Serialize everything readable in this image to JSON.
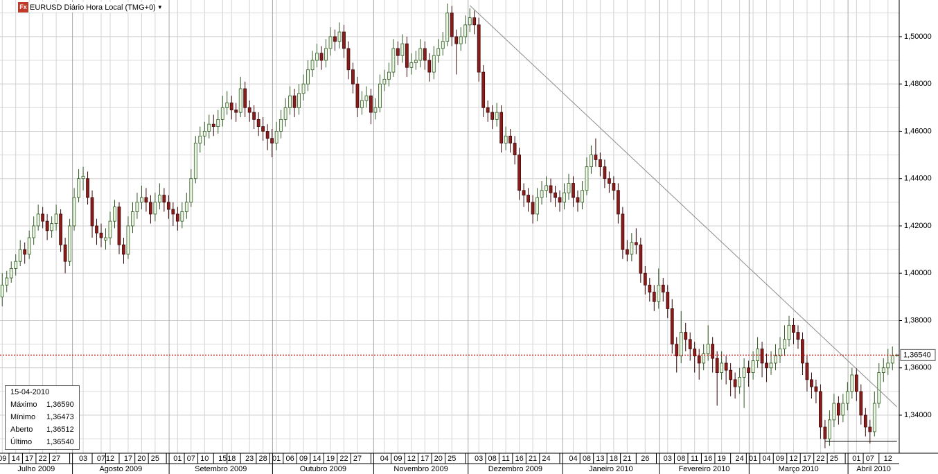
{
  "chart_data": {
    "type": "candlestick",
    "title": "EURUSD Diário Hora Local (TMG+0)",
    "ylim": [
      1.3239,
      1.5155
    ],
    "yticks": [
      {
        "value": 1.34,
        "label": "1,34000"
      },
      {
        "value": 1.36,
        "label": "1,36000"
      },
      {
        "value": 1.38,
        "label": "1,38000"
      },
      {
        "value": 1.4,
        "label": "1,40000"
      },
      {
        "value": 1.42,
        "label": "1,42000"
      },
      {
        "value": 1.44,
        "label": "1,44000"
      },
      {
        "value": 1.46,
        "label": "1,46000"
      },
      {
        "value": 1.48,
        "label": "1,48000"
      },
      {
        "value": 1.5,
        "label": "1,50000"
      }
    ],
    "minor_yticks": [
      1.33,
      1.35,
      1.37,
      1.39,
      1.41,
      1.43,
      1.45,
      1.47,
      1.49,
      1.51
    ],
    "grid": true,
    "up_color": "#eaf5e2",
    "up_stroke": "#2f5a22",
    "down_color": "#8b1c1c",
    "down_stroke": "#3d0a0a",
    "categories": [
      "09",
      null,
      null,
      "14",
      null,
      null,
      "17",
      null,
      null,
      "22",
      null,
      null,
      "27",
      null,
      null,
      null,
      null,
      null,
      "03",
      null,
      null,
      null,
      "07",
      null,
      "12",
      null,
      null,
      null,
      "17",
      null,
      null,
      "20",
      null,
      null,
      "25",
      null,
      null,
      null,
      null,
      "01",
      null,
      null,
      "07",
      null,
      null,
      "10",
      null,
      null,
      null,
      "15",
      null,
      "18",
      null,
      null,
      null,
      "23",
      null,
      null,
      "28",
      null,
      null,
      "01",
      null,
      null,
      "06",
      null,
      null,
      "09",
      null,
      null,
      "14",
      null,
      null,
      "19",
      null,
      null,
      "22",
      null,
      null,
      "27",
      null,
      null,
      null,
      null,
      null,
      "04",
      null,
      null,
      "09",
      null,
      null,
      "12",
      null,
      null,
      "17",
      null,
      null,
      "20",
      null,
      null,
      "25",
      null,
      null,
      null,
      null,
      null,
      "03",
      null,
      null,
      "08",
      null,
      null,
      "11",
      null,
      null,
      "16",
      null,
      null,
      "21",
      null,
      null,
      "24",
      null,
      null,
      null,
      null,
      null,
      "04",
      null,
      null,
      "08",
      null,
      null,
      "13",
      null,
      null,
      "18",
      null,
      null,
      "21",
      null,
      null,
      null,
      "26",
      null,
      null,
      null,
      null,
      "03",
      null,
      null,
      "08",
      null,
      null,
      "11",
      null,
      null,
      "16",
      null,
      null,
      "19",
      null,
      null,
      null,
      "24",
      null,
      null,
      "01",
      null,
      null,
      "04",
      null,
      null,
      "09",
      null,
      null,
      "12",
      null,
      null,
      "17",
      null,
      null,
      "22",
      null,
      null,
      "25",
      null,
      null,
      null,
      null,
      "01",
      null,
      null,
      "07",
      null,
      null,
      null,
      "12",
      null,
      null
    ],
    "months": [
      "Julho 2009",
      "Agosto 2009",
      "Setembro 2009",
      "Outubro 2009",
      "Novembro 2009",
      "Dezembro 2009",
      "Janeiro 2010",
      "Fevereiro 2010",
      "Março 2010",
      "Abril 2010"
    ],
    "ohlc": [
      [
        1.39,
        1.4,
        1.386,
        1.395
      ],
      [
        1.395,
        1.401,
        1.392,
        1.398
      ],
      [
        1.398,
        1.405,
        1.396,
        1.402
      ],
      [
        1.402,
        1.408,
        1.399,
        1.405
      ],
      [
        1.405,
        1.414,
        1.403,
        1.41
      ],
      [
        1.41,
        1.413,
        1.404,
        1.408
      ],
      [
        1.408,
        1.418,
        1.406,
        1.415
      ],
      [
        1.415,
        1.424,
        1.412,
        1.42
      ],
      [
        1.42,
        1.429,
        1.418,
        1.425
      ],
      [
        1.425,
        1.428,
        1.419,
        1.422
      ],
      [
        1.422,
        1.425,
        1.414,
        1.418
      ],
      [
        1.418,
        1.424,
        1.415,
        1.421
      ],
      [
        1.421,
        1.429,
        1.418,
        1.425
      ],
      [
        1.425,
        1.427,
        1.409,
        1.412
      ],
      [
        1.412,
        1.415,
        1.4,
        1.405
      ],
      [
        1.405,
        1.423,
        1.403,
        1.42
      ],
      [
        1.42,
        1.436,
        1.418,
        1.432
      ],
      [
        1.432,
        1.444,
        1.43,
        1.44
      ],
      [
        1.44,
        1.445,
        1.435,
        1.441
      ],
      [
        1.44,
        1.443,
        1.429,
        1.432
      ],
      [
        1.432,
        1.435,
        1.415,
        1.42
      ],
      [
        1.42,
        1.423,
        1.412,
        1.417
      ],
      [
        1.417,
        1.421,
        1.411,
        1.415
      ],
      [
        1.414,
        1.419,
        1.41,
        1.415
      ],
      [
        1.415,
        1.426,
        1.412,
        1.422
      ],
      [
        1.422,
        1.431,
        1.419,
        1.428
      ],
      [
        1.428,
        1.43,
        1.408,
        1.412
      ],
      [
        1.412,
        1.415,
        1.404,
        1.408
      ],
      [
        1.408,
        1.424,
        1.406,
        1.42
      ],
      [
        1.42,
        1.43,
        1.417,
        1.426
      ],
      [
        1.426,
        1.434,
        1.423,
        1.43
      ],
      [
        1.43,
        1.437,
        1.427,
        1.432
      ],
      [
        1.432,
        1.436,
        1.426,
        1.43
      ],
      [
        1.43,
        1.433,
        1.421,
        1.425
      ],
      [
        1.425,
        1.434,
        1.422,
        1.43
      ],
      [
        1.43,
        1.438,
        1.427,
        1.433
      ],
      [
        1.433,
        1.436,
        1.426,
        1.43
      ],
      [
        1.43,
        1.433,
        1.423,
        1.427
      ],
      [
        1.427,
        1.43,
        1.42,
        1.425
      ],
      [
        1.425,
        1.428,
        1.418,
        1.422
      ],
      [
        1.422,
        1.43,
        1.419,
        1.426
      ],
      [
        1.426,
        1.434,
        1.423,
        1.43
      ],
      [
        1.43,
        1.444,
        1.428,
        1.44
      ],
      [
        1.44,
        1.458,
        1.438,
        1.455
      ],
      [
        1.455,
        1.462,
        1.451,
        1.458
      ],
      [
        1.458,
        1.464,
        1.454,
        1.46
      ],
      [
        1.46,
        1.467,
        1.457,
        1.463
      ],
      [
        1.463,
        1.467,
        1.458,
        1.462
      ],
      [
        1.462,
        1.469,
        1.459,
        1.465
      ],
      [
        1.465,
        1.475,
        1.462,
        1.47
      ],
      [
        1.47,
        1.477,
        1.467,
        1.472
      ],
      [
        1.472,
        1.475,
        1.465,
        1.469
      ],
      [
        1.469,
        1.472,
        1.464,
        1.468
      ],
      [
        1.468,
        1.483,
        1.466,
        1.478
      ],
      [
        1.478,
        1.481,
        1.466,
        1.47
      ],
      [
        1.47,
        1.473,
        1.464,
        1.468
      ],
      [
        1.468,
        1.471,
        1.461,
        1.465
      ],
      [
        1.465,
        1.468,
        1.458,
        1.462
      ],
      [
        1.462,
        1.466,
        1.456,
        1.46
      ],
      [
        1.46,
        1.463,
        1.452,
        1.457
      ],
      [
        1.457,
        1.461,
        1.449,
        1.455
      ],
      [
        1.455,
        1.464,
        1.452,
        1.46
      ],
      [
        1.46,
        1.469,
        1.457,
        1.465
      ],
      [
        1.465,
        1.474,
        1.462,
        1.47
      ],
      [
        1.47,
        1.479,
        1.467,
        1.475
      ],
      [
        1.475,
        1.478,
        1.466,
        1.47
      ],
      [
        1.47,
        1.48,
        1.467,
        1.476
      ],
      [
        1.476,
        1.484,
        1.473,
        1.48
      ],
      [
        1.48,
        1.49,
        1.477,
        1.486
      ],
      [
        1.486,
        1.494,
        1.483,
        1.49
      ],
      [
        1.49,
        1.497,
        1.487,
        1.493
      ],
      [
        1.493,
        1.496,
        1.486,
        1.49
      ],
      [
        1.49,
        1.499,
        1.487,
        1.495
      ],
      [
        1.495,
        1.504,
        1.492,
        1.5
      ],
      [
        1.5,
        1.503,
        1.494,
        1.498
      ],
      [
        1.498,
        1.506,
        1.495,
        1.502
      ],
      [
        1.502,
        1.505,
        1.491,
        1.495
      ],
      [
        1.495,
        1.498,
        1.482,
        1.486
      ],
      [
        1.486,
        1.489,
        1.476,
        1.48
      ],
      [
        1.48,
        1.483,
        1.466,
        1.47
      ],
      [
        1.47,
        1.477,
        1.467,
        1.473
      ],
      [
        1.473,
        1.479,
        1.47,
        1.475
      ],
      [
        1.475,
        1.478,
        1.463,
        1.468
      ],
      [
        1.468,
        1.474,
        1.465,
        1.47
      ],
      [
        1.47,
        1.484,
        1.468,
        1.48
      ],
      [
        1.48,
        1.486,
        1.477,
        1.482
      ],
      [
        1.482,
        1.489,
        1.479,
        1.485
      ],
      [
        1.485,
        1.499,
        1.483,
        1.495
      ],
      [
        1.495,
        1.498,
        1.488,
        1.492
      ],
      [
        1.492,
        1.501,
        1.489,
        1.497
      ],
      [
        1.497,
        1.5,
        1.483,
        1.487
      ],
      [
        1.487,
        1.493,
        1.484,
        1.489
      ],
      [
        1.489,
        1.494,
        1.486,
        1.49
      ],
      [
        1.49,
        1.499,
        1.487,
        1.495
      ],
      [
        1.495,
        1.498,
        1.486,
        1.49
      ],
      [
        1.49,
        1.493,
        1.481,
        1.485
      ],
      [
        1.485,
        1.496,
        1.482,
        1.492
      ],
      [
        1.492,
        1.499,
        1.489,
        1.495
      ],
      [
        1.495,
        1.502,
        1.492,
        1.498
      ],
      [
        1.498,
        1.514,
        1.496,
        1.51
      ],
      [
        1.51,
        1.513,
        1.496,
        1.5
      ],
      [
        1.5,
        1.503,
        1.484,
        1.497
      ],
      [
        1.497,
        1.504,
        1.494,
        1.5
      ],
      [
        1.5,
        1.509,
        1.497,
        1.505
      ],
      [
        1.505,
        1.512,
        1.502,
        1.508
      ],
      [
        1.508,
        1.511,
        1.501,
        1.505
      ],
      [
        1.505,
        1.508,
        1.481,
        1.485
      ],
      [
        1.485,
        1.488,
        1.466,
        1.47
      ],
      [
        1.47,
        1.473,
        1.464,
        1.468
      ],
      [
        1.468,
        1.471,
        1.461,
        1.465
      ],
      [
        1.465,
        1.472,
        1.462,
        1.468
      ],
      [
        1.468,
        1.471,
        1.451,
        1.455
      ],
      [
        1.455,
        1.462,
        1.452,
        1.458
      ],
      [
        1.458,
        1.461,
        1.451,
        1.455
      ],
      [
        1.455,
        1.458,
        1.446,
        1.45
      ],
      [
        1.45,
        1.453,
        1.431,
        1.435
      ],
      [
        1.435,
        1.438,
        1.428,
        1.433
      ],
      [
        1.433,
        1.436,
        1.426,
        1.43
      ],
      [
        1.43,
        1.433,
        1.421,
        1.425
      ],
      [
        1.425,
        1.436,
        1.422,
        1.432
      ],
      [
        1.432,
        1.439,
        1.429,
        1.435
      ],
      [
        1.435,
        1.441,
        1.432,
        1.437
      ],
      [
        1.437,
        1.44,
        1.43,
        1.434
      ],
      [
        1.434,
        1.437,
        1.428,
        1.432
      ],
      [
        1.432,
        1.435,
        1.426,
        1.43
      ],
      [
        1.43,
        1.438,
        1.427,
        1.434
      ],
      [
        1.434,
        1.442,
        1.431,
        1.438
      ],
      [
        1.438,
        1.441,
        1.428,
        1.432
      ],
      [
        1.432,
        1.435,
        1.426,
        1.43
      ],
      [
        1.43,
        1.439,
        1.427,
        1.435
      ],
      [
        1.435,
        1.449,
        1.433,
        1.445
      ],
      [
        1.445,
        1.454,
        1.442,
        1.45
      ],
      [
        1.45,
        1.457,
        1.445,
        1.448
      ],
      [
        1.448,
        1.451,
        1.441,
        1.445
      ],
      [
        1.445,
        1.448,
        1.436,
        1.44
      ],
      [
        1.44,
        1.443,
        1.434,
        1.438
      ],
      [
        1.438,
        1.441,
        1.431,
        1.435
      ],
      [
        1.435,
        1.438,
        1.421,
        1.425
      ],
      [
        1.425,
        1.428,
        1.406,
        1.41
      ],
      [
        1.41,
        1.414,
        1.405,
        1.408
      ],
      [
        1.408,
        1.417,
        1.405,
        1.413
      ],
      [
        1.413,
        1.419,
        1.408,
        1.412
      ],
      [
        1.412,
        1.415,
        1.396,
        1.4
      ],
      [
        1.4,
        1.403,
        1.391,
        1.395
      ],
      [
        1.395,
        1.398,
        1.388,
        1.392
      ],
      [
        1.392,
        1.395,
        1.384,
        1.388
      ],
      [
        1.388,
        1.402,
        1.385,
        1.395
      ],
      [
        1.395,
        1.398,
        1.388,
        1.392
      ],
      [
        1.392,
        1.395,
        1.381,
        1.385
      ],
      [
        1.385,
        1.389,
        1.366,
        1.37
      ],
      [
        1.37,
        1.373,
        1.358,
        1.365
      ],
      [
        1.365,
        1.384,
        1.362,
        1.375
      ],
      [
        1.375,
        1.379,
        1.367,
        1.372
      ],
      [
        1.372,
        1.375,
        1.363,
        1.368
      ],
      [
        1.368,
        1.371,
        1.358,
        1.365
      ],
      [
        1.365,
        1.368,
        1.355,
        1.362
      ],
      [
        1.362,
        1.37,
        1.359,
        1.366
      ],
      [
        1.366,
        1.378,
        1.363,
        1.37
      ],
      [
        1.37,
        1.373,
        1.358,
        1.364
      ],
      [
        1.364,
        1.367,
        1.344,
        1.358
      ],
      [
        1.358,
        1.367,
        1.355,
        1.362
      ],
      [
        1.362,
        1.365,
        1.353,
        1.359
      ],
      [
        1.359,
        1.362,
        1.348,
        1.355
      ],
      [
        1.355,
        1.358,
        1.347,
        1.352
      ],
      [
        1.352,
        1.36,
        1.349,
        1.356
      ],
      [
        1.356,
        1.364,
        1.343,
        1.36
      ],
      [
        1.36,
        1.363,
        1.352,
        1.358
      ],
      [
        1.358,
        1.367,
        1.355,
        1.363
      ],
      [
        1.363,
        1.373,
        1.36,
        1.368
      ],
      [
        1.368,
        1.371,
        1.356,
        1.362
      ],
      [
        1.362,
        1.366,
        1.354,
        1.36
      ],
      [
        1.36,
        1.367,
        1.357,
        1.362
      ],
      [
        1.362,
        1.37,
        1.359,
        1.365
      ],
      [
        1.365,
        1.373,
        1.362,
        1.368
      ],
      [
        1.368,
        1.378,
        1.365,
        1.372
      ],
      [
        1.372,
        1.382,
        1.369,
        1.378
      ],
      [
        1.378,
        1.381,
        1.37,
        1.375
      ],
      [
        1.375,
        1.378,
        1.368,
        1.372
      ],
      [
        1.372,
        1.375,
        1.357,
        1.362
      ],
      [
        1.362,
        1.365,
        1.35,
        1.355
      ],
      [
        1.355,
        1.358,
        1.347,
        1.352
      ],
      [
        1.352,
        1.355,
        1.345,
        1.35
      ],
      [
        1.35,
        1.353,
        1.33,
        1.335
      ],
      [
        1.335,
        1.338,
        1.326,
        1.33
      ],
      [
        1.33,
        1.342,
        1.327,
        1.338
      ],
      [
        1.338,
        1.349,
        1.335,
        1.345
      ],
      [
        1.345,
        1.348,
        1.336,
        1.34
      ],
      [
        1.34,
        1.349,
        1.337,
        1.345
      ],
      [
        1.345,
        1.354,
        1.342,
        1.35
      ],
      [
        1.35,
        1.36,
        1.347,
        1.357
      ],
      [
        1.357,
        1.36,
        1.346,
        1.35
      ],
      [
        1.35,
        1.353,
        1.336,
        1.34
      ],
      [
        1.34,
        1.343,
        1.331,
        1.335
      ],
      [
        1.335,
        1.338,
        1.328,
        1.333
      ],
      [
        1.333,
        1.35,
        1.331,
        1.345
      ],
      [
        1.345,
        1.362,
        1.343,
        1.358
      ],
      [
        1.358,
        1.364,
        1.354,
        1.36
      ],
      [
        1.36,
        1.368,
        1.357,
        1.362
      ],
      [
        1.362,
        1.369,
        1.359,
        1.3651
      ],
      [
        1.36512,
        1.3659,
        1.36473,
        1.3654
      ]
    ],
    "trendlines": [
      {
        "x": [
          104,
          199
        ],
        "y": [
          1.5132,
          1.3435
        ],
        "color": "#8c8c8c"
      },
      {
        "x": [
          183,
          199
        ],
        "y": [
          1.3289,
          1.3289
        ],
        "color": "#000000"
      }
    ],
    "last_price": {
      "value": 1.3654,
      "label": "1,36540",
      "color": "#d00000"
    },
    "info_box": {
      "date": "15-04-2010",
      "rows": [
        {
          "label": "Máximo",
          "value": "1,36590"
        },
        {
          "label": "Mínimo",
          "value": "1,36473"
        },
        {
          "label": "Aberto",
          "value": "1,36512"
        },
        {
          "label": "Último",
          "value": "1,36540"
        }
      ]
    }
  }
}
